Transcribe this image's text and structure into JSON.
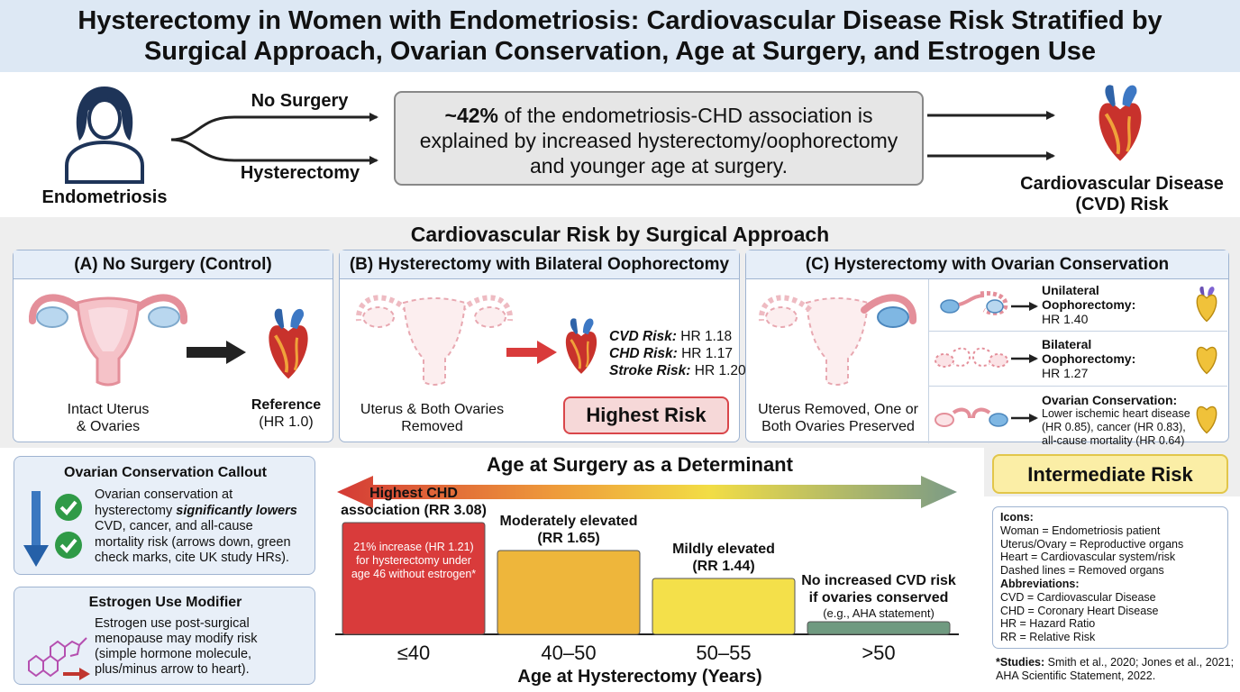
{
  "title": {
    "line1": "Hysterectomy in Women with Endometriosis: Cardiovascular Disease Risk Stratified by",
    "line2": "Surgical Approach, Ovarian Conservation, Age at Surgery, and Estrogen Use"
  },
  "flow": {
    "patient_label": "Endometriosis",
    "branch_top": "No Surgery",
    "branch_bottom": "Hysterectomy",
    "center_text_bold": "~42%",
    "center_text_rest_1": " of the endometriosis-CHD association is",
    "center_text_2": "explained by increased hysterectomy/oophorectomy",
    "center_text_3": "and younger age at surgery.",
    "outcome_1": "Cardiovascular Disease",
    "outcome_2": "(CVD) Risk"
  },
  "section_title": "Cardiovascular Risk by Surgical Approach",
  "panel_a": {
    "header": "(A) No Surgery (Control)",
    "caption_1": "Intact Uterus",
    "caption_2": "& Ovaries",
    "ref_label": "Reference",
    "ref_value": "(HR 1.0)"
  },
  "panel_b": {
    "header": "(B) Hysterectomy with Bilateral Oophorectomy",
    "caption_1": "Uterus & Both Ovaries",
    "caption_2": "Removed",
    "cvd_label": "CVD Risk:",
    "cvd_value": " HR 1.18",
    "chd_label": "CHD Risk:",
    "chd_value": " HR 1.17",
    "stroke_label": "Stroke Risk:",
    "stroke_value": " HR 1.20",
    "badge": "Highest Risk"
  },
  "panel_c": {
    "header": "(C) Hysterectomy with Ovarian Conservation",
    "caption_1": "Uterus Removed, One or",
    "caption_2": "Both Ovaries Preserved",
    "rows": [
      {
        "t1": "Unilateral",
        "t2": "Oophorectomy:",
        "t3": "HR 1.40"
      },
      {
        "t1": "Bilateral",
        "t2": "Oophorectomy:",
        "t3": "HR 1.27"
      }
    ],
    "cons_title": "Ovarian Conservation:",
    "cons_1": "Lower ischemic heart disease",
    "cons_2": "(HR 0.85), cancer (HR 0.83),",
    "cons_3": "all-cause mortality (HR 0.64)",
    "badge": "Intermediate Risk"
  },
  "callout_ovarian": {
    "title": "Ovarian Conservation Callout",
    "l1": "Ovarian conservation at",
    "l2a": "hysterectomy ",
    "l2b": "significantly lowers",
    "l3": "CVD, cancer, and all-cause",
    "l4": "mortality risk (arrows down, green",
    "l5": "check marks, cite UK study HRs)."
  },
  "callout_estrogen": {
    "title": "Estrogen Use Modifier",
    "l1": "Estrogen use post-surgical",
    "l2": "menopause may modify risk",
    "l3": "(simple hormone molecule,",
    "l4": "plus/minus arrow to heart)."
  },
  "age_chart": {
    "title": "Age at Surgery as a Determinant",
    "xlabel": "Age at Hysterectomy (Years)",
    "bars": [
      {
        "cat": "≤40",
        "level": 4,
        "label1": "Highest CHD",
        "label2": "association (RR 3.08)",
        "inner1": "21% increase (HR 1.21)",
        "inner2": "for hysterectomy under",
        "inner3": "age 46 without estrogen*",
        "color": "#d93b3b"
      },
      {
        "cat": "40–50",
        "level": 3,
        "label1": "Moderately elevated",
        "label2": "(RR 1.65)",
        "color": "#eeb63b"
      },
      {
        "cat": "50–55",
        "level": 2,
        "label1": "Mildly elevated",
        "label2": "(RR 1.44)",
        "color": "#f4e04a"
      },
      {
        "cat": ">50",
        "level": 1,
        "label1": "No increased CVD risk",
        "label2": "if ovaries conserved",
        "label3": "(e.g., AHA statement)",
        "color": "#6f9a80"
      }
    ]
  },
  "legend": {
    "icons_title": "Icons:",
    "icons": [
      "Woman = Endometriosis patient",
      "Uterus/Ovary = Reproductive organs",
      "Heart = Cardiovascular system/risk",
      "Dashed lines = Removed organs"
    ],
    "abbr_title": "Abbreviations:",
    "abbr": [
      "CVD = Cardiovascular Disease",
      "CHD = Coronary Heart Disease",
      "HR = Hazard Ratio",
      "RR = Relative Risk"
    ]
  },
  "studies": {
    "label": "*Studies:",
    "text1": " Smith et al., 2020; Jones et al., 2021;",
    "text2": "AHA Scientific Statement, 2022."
  },
  "colors": {
    "panel_border": "#9fb4d1",
    "header_fill": "#e6eef8",
    "highest_risk": "#f6d8d8",
    "intermediate_risk": "#fbeea6"
  }
}
